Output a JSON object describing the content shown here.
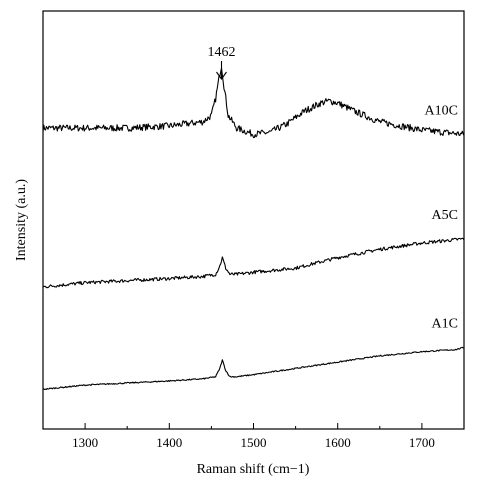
{
  "chart_data": {
    "type": "line",
    "title": "",
    "xlabel": "Raman shift (cm−1)",
    "ylabel": "Intensity (a.u.)",
    "xlim": [
      1250,
      1750
    ],
    "xticks": [
      1300,
      1400,
      1500,
      1600,
      1700
    ],
    "yticks": "none",
    "grid": false,
    "legend": "labels next to curves on the right",
    "line_color": "#000000",
    "annotation": {
      "text": "1462",
      "x": 1462,
      "arrow": "down"
    },
    "series": [
      {
        "name": "A10C",
        "x": [
          1250,
          1300,
          1350,
          1400,
          1420,
          1440,
          1450,
          1455,
          1460,
          1462,
          1465,
          1470,
          1480,
          1500,
          1520,
          1540,
          1560,
          1580,
          1590,
          1600,
          1620,
          1650,
          1700,
          1750
        ],
        "y": [
          0.72,
          0.72,
          0.72,
          0.725,
          0.73,
          0.735,
          0.75,
          0.79,
          0.85,
          0.87,
          0.82,
          0.75,
          0.72,
          0.705,
          0.71,
          0.73,
          0.76,
          0.78,
          0.785,
          0.78,
          0.76,
          0.735,
          0.715,
          0.705
        ],
        "noise": 0.008
      },
      {
        "name": "A5C",
        "x": [
          1250,
          1300,
          1350,
          1400,
          1440,
          1455,
          1460,
          1463,
          1467,
          1472,
          1480,
          1500,
          1550,
          1600,
          1650,
          1700,
          1750
        ],
        "y": [
          0.34,
          0.35,
          0.355,
          0.36,
          0.365,
          0.37,
          0.39,
          0.41,
          0.385,
          0.37,
          0.37,
          0.375,
          0.385,
          0.41,
          0.43,
          0.445,
          0.455
        ],
        "noise": 0.004
      },
      {
        "name": "A1C",
        "x": [
          1250,
          1300,
          1350,
          1400,
          1440,
          1455,
          1460,
          1463,
          1467,
          1472,
          1480,
          1500,
          1550,
          1600,
          1650,
          1700,
          1740,
          1750
        ],
        "y": [
          0.095,
          0.105,
          0.11,
          0.115,
          0.12,
          0.125,
          0.145,
          0.165,
          0.14,
          0.125,
          0.125,
          0.13,
          0.145,
          0.16,
          0.175,
          0.185,
          0.19,
          0.195
        ],
        "noise": 0.0015
      }
    ]
  }
}
